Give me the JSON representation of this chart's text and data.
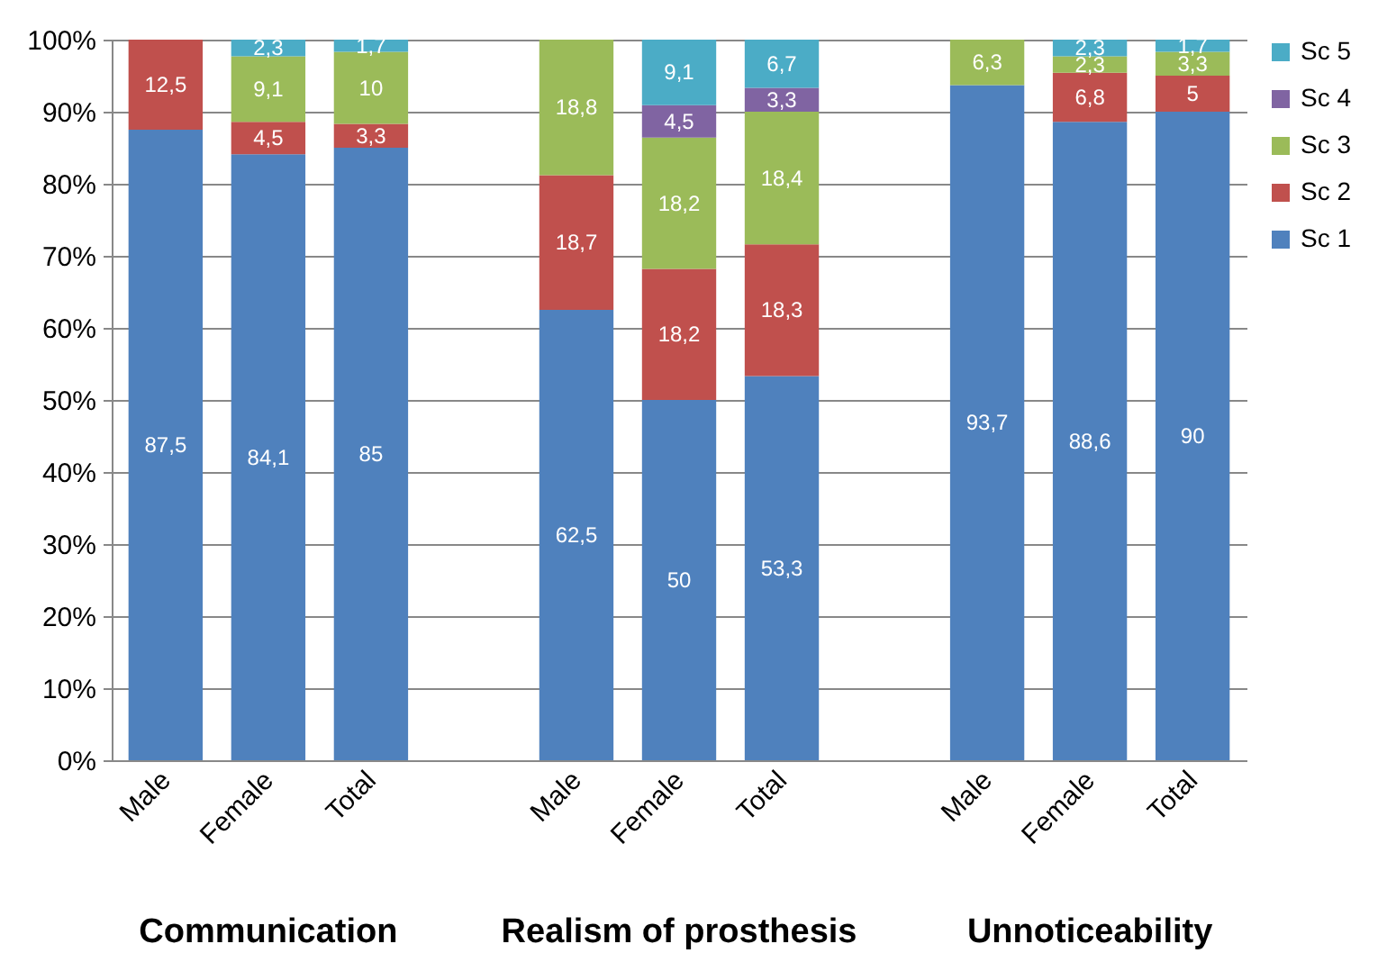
{
  "chart_data": {
    "type": "bar",
    "stacked": true,
    "categories": [
      "Male",
      "Female",
      "Total",
      null,
      "Male",
      "Female",
      "Total",
      null,
      "Male",
      "Female",
      "Total"
    ],
    "series": [
      {
        "name": "Sc 1",
        "color": "#4f81bd",
        "values": [
          87.5,
          84.1,
          85,
          null,
          62.5,
          50,
          53.3,
          null,
          93.7,
          88.6,
          90
        ],
        "value_labels": [
          "87,5",
          "84,1",
          "85",
          null,
          "62,5",
          "50",
          "53,3",
          null,
          "93,7",
          "88,6",
          "90"
        ]
      },
      {
        "name": "Sc 2",
        "color": "#c0504d",
        "values": [
          12.5,
          4.5,
          3.3,
          null,
          18.7,
          18.2,
          18.3,
          null,
          null,
          6.8,
          5
        ],
        "value_labels": [
          "12,5",
          "4,5",
          "3,3",
          null,
          "18,7",
          "18,2",
          "18,3",
          null,
          null,
          "6,8",
          "5"
        ]
      },
      {
        "name": "Sc 3",
        "color": "#9bbb59",
        "values": [
          null,
          9.1,
          10,
          null,
          18.8,
          18.2,
          18.4,
          null,
          6.3,
          2.3,
          3.3
        ],
        "value_labels": [
          null,
          "9,1",
          "10",
          null,
          "18,8",
          "18,2",
          "18,4",
          null,
          "6,3",
          "2,3",
          "3,3"
        ]
      },
      {
        "name": "Sc 4",
        "color": "#8064a2",
        "values": [
          null,
          null,
          null,
          null,
          null,
          4.5,
          3.3,
          null,
          null,
          null,
          null
        ],
        "value_labels": [
          null,
          null,
          null,
          null,
          null,
          "4,5",
          "3,3",
          null,
          null,
          null,
          null
        ]
      },
      {
        "name": "Sc 5",
        "color": "#4bacc6",
        "values": [
          null,
          2.3,
          1.7,
          null,
          null,
          9.1,
          6.7,
          null,
          null,
          2.3,
          1.7
        ],
        "value_labels": [
          null,
          "2,3",
          "1,7",
          null,
          null,
          "9,1",
          "6,7",
          null,
          null,
          "2,3",
          "1,7"
        ]
      }
    ],
    "ylim": [
      0,
      100
    ],
    "yticks": [
      {
        "value": 0,
        "label": "0%"
      },
      {
        "value": 10,
        "label": "10%"
      },
      {
        "value": 20,
        "label": "20%"
      },
      {
        "value": 30,
        "label": "30%"
      },
      {
        "value": 40,
        "label": "40%"
      },
      {
        "value": 50,
        "label": "50%"
      },
      {
        "value": 60,
        "label": "60%"
      },
      {
        "value": 70,
        "label": "70%"
      },
      {
        "value": 80,
        "label": "80%"
      },
      {
        "value": 90,
        "label": "90%"
      },
      {
        "value": 100,
        "label": "100%"
      }
    ],
    "grid": "y",
    "legend": "right",
    "annotations": [
      "Communication",
      "Realism of prosthesis",
      "Unnoticeability"
    ]
  }
}
